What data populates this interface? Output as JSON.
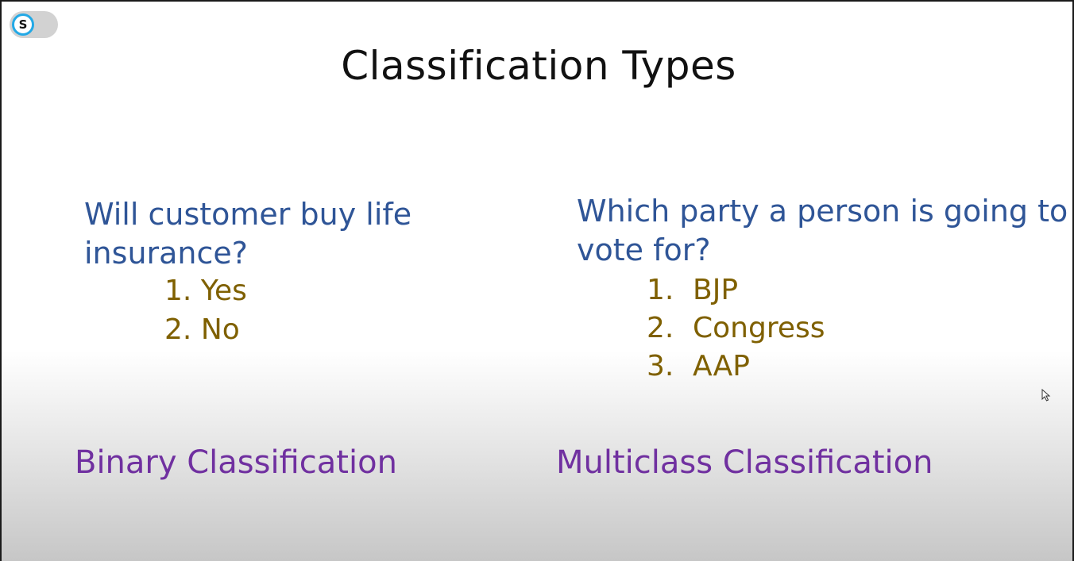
{
  "slide": {
    "title": "Classification Types",
    "left": {
      "question": "Will customer buy life insurance?",
      "options": [
        {
          "num": "1.",
          "text": "Yes"
        },
        {
          "num": "2.",
          "text": "No"
        }
      ],
      "label": "Binary Classification"
    },
    "right": {
      "question": "Which party a person is going to vote for?",
      "options": [
        {
          "num": "1.",
          "text": "BJP"
        },
        {
          "num": "2.",
          "text": "Congress"
        },
        {
          "num": "3.",
          "text": "AAP"
        }
      ],
      "label": "Multiclass Classification"
    }
  },
  "toggle": {
    "letter": "S",
    "icon": "s-toggle-icon",
    "accent": "#23a9e6"
  },
  "colors": {
    "question": "#2f5597",
    "options": "#7f6000",
    "label": "#7030a0"
  }
}
